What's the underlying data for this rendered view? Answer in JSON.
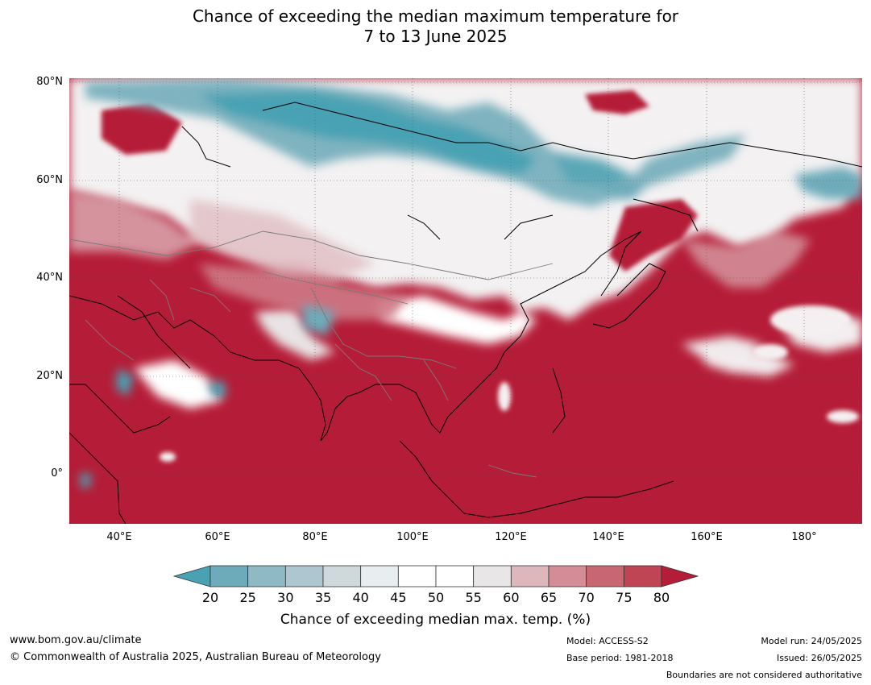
{
  "title": {
    "line1": "Chance of exceeding the median maximum temperature for",
    "line2": "7 to 13 June 2025"
  },
  "map": {
    "region": "Asia / Western Pacific",
    "base_color": "#b51c37",
    "latitude_labels": [
      "80°N",
      "60°N",
      "40°N",
      "20°N",
      "0°"
    ],
    "longitude_labels": [
      "40°E",
      "60°E",
      "80°E",
      "100°E",
      "120°E",
      "140°E",
      "160°E",
      "180°"
    ]
  },
  "colorbar": {
    "ticks": [
      "20",
      "25",
      "30",
      "35",
      "40",
      "45",
      "50",
      "55",
      "60",
      "65",
      "70",
      "75",
      "80"
    ],
    "colors": [
      "#48a2b4",
      "#6eabba",
      "#8fb9c5",
      "#adc6cf",
      "#cfd9dc",
      "#e8eef0",
      "#ffffff",
      "#ffffff",
      "#e9e6e7",
      "#deb7bd",
      "#d48d97",
      "#c86671",
      "#bf4555",
      "#b51c37"
    ],
    "label": "Chance of exceeding median max. temp. (%)"
  },
  "footer": {
    "website": "www.bom.gov.au/climate",
    "copyright": "© Commonwealth of Australia 2025, Australian Bureau of Meteorology",
    "model": "Model: ACCESS-S2",
    "base_period": "Base period: 1981-2018",
    "model_run": "Model run: 24/05/2025",
    "issued": "Issued: 26/05/2025",
    "disclaimer": "Boundaries are not considered authoritative"
  }
}
